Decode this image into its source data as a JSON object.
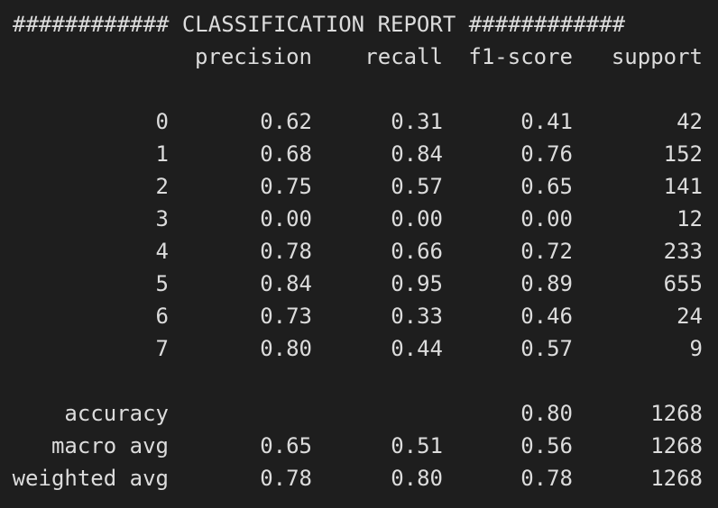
{
  "report": {
    "title": "############ CLASSIFICATION REPORT ############",
    "headers": {
      "precision": "precision",
      "recall": "recall",
      "f1": "f1-score",
      "support": "support"
    },
    "rows": [
      {
        "label": "0",
        "precision": "0.62",
        "recall": "0.31",
        "f1": "0.41",
        "support": "42"
      },
      {
        "label": "1",
        "precision": "0.68",
        "recall": "0.84",
        "f1": "0.76",
        "support": "152"
      },
      {
        "label": "2",
        "precision": "0.75",
        "recall": "0.57",
        "f1": "0.65",
        "support": "141"
      },
      {
        "label": "3",
        "precision": "0.00",
        "recall": "0.00",
        "f1": "0.00",
        "support": "12"
      },
      {
        "label": "4",
        "precision": "0.78",
        "recall": "0.66",
        "f1": "0.72",
        "support": "233"
      },
      {
        "label": "5",
        "precision": "0.84",
        "recall": "0.95",
        "f1": "0.89",
        "support": "655"
      },
      {
        "label": "6",
        "precision": "0.73",
        "recall": "0.33",
        "f1": "0.46",
        "support": "24"
      },
      {
        "label": "7",
        "precision": "0.80",
        "recall": "0.44",
        "f1": "0.57",
        "support": "9"
      }
    ],
    "summary": [
      {
        "label": "accuracy",
        "precision": "",
        "recall": "",
        "f1": "0.80",
        "support": "1268"
      },
      {
        "label": "macro avg",
        "precision": "0.65",
        "recall": "0.51",
        "f1": "0.56",
        "support": "1268"
      },
      {
        "label": "weighted avg",
        "precision": "0.78",
        "recall": "0.80",
        "f1": "0.78",
        "support": "1268"
      }
    ]
  },
  "colors": {
    "background": "#1e1e1e",
    "text": "#dcdcdc"
  }
}
